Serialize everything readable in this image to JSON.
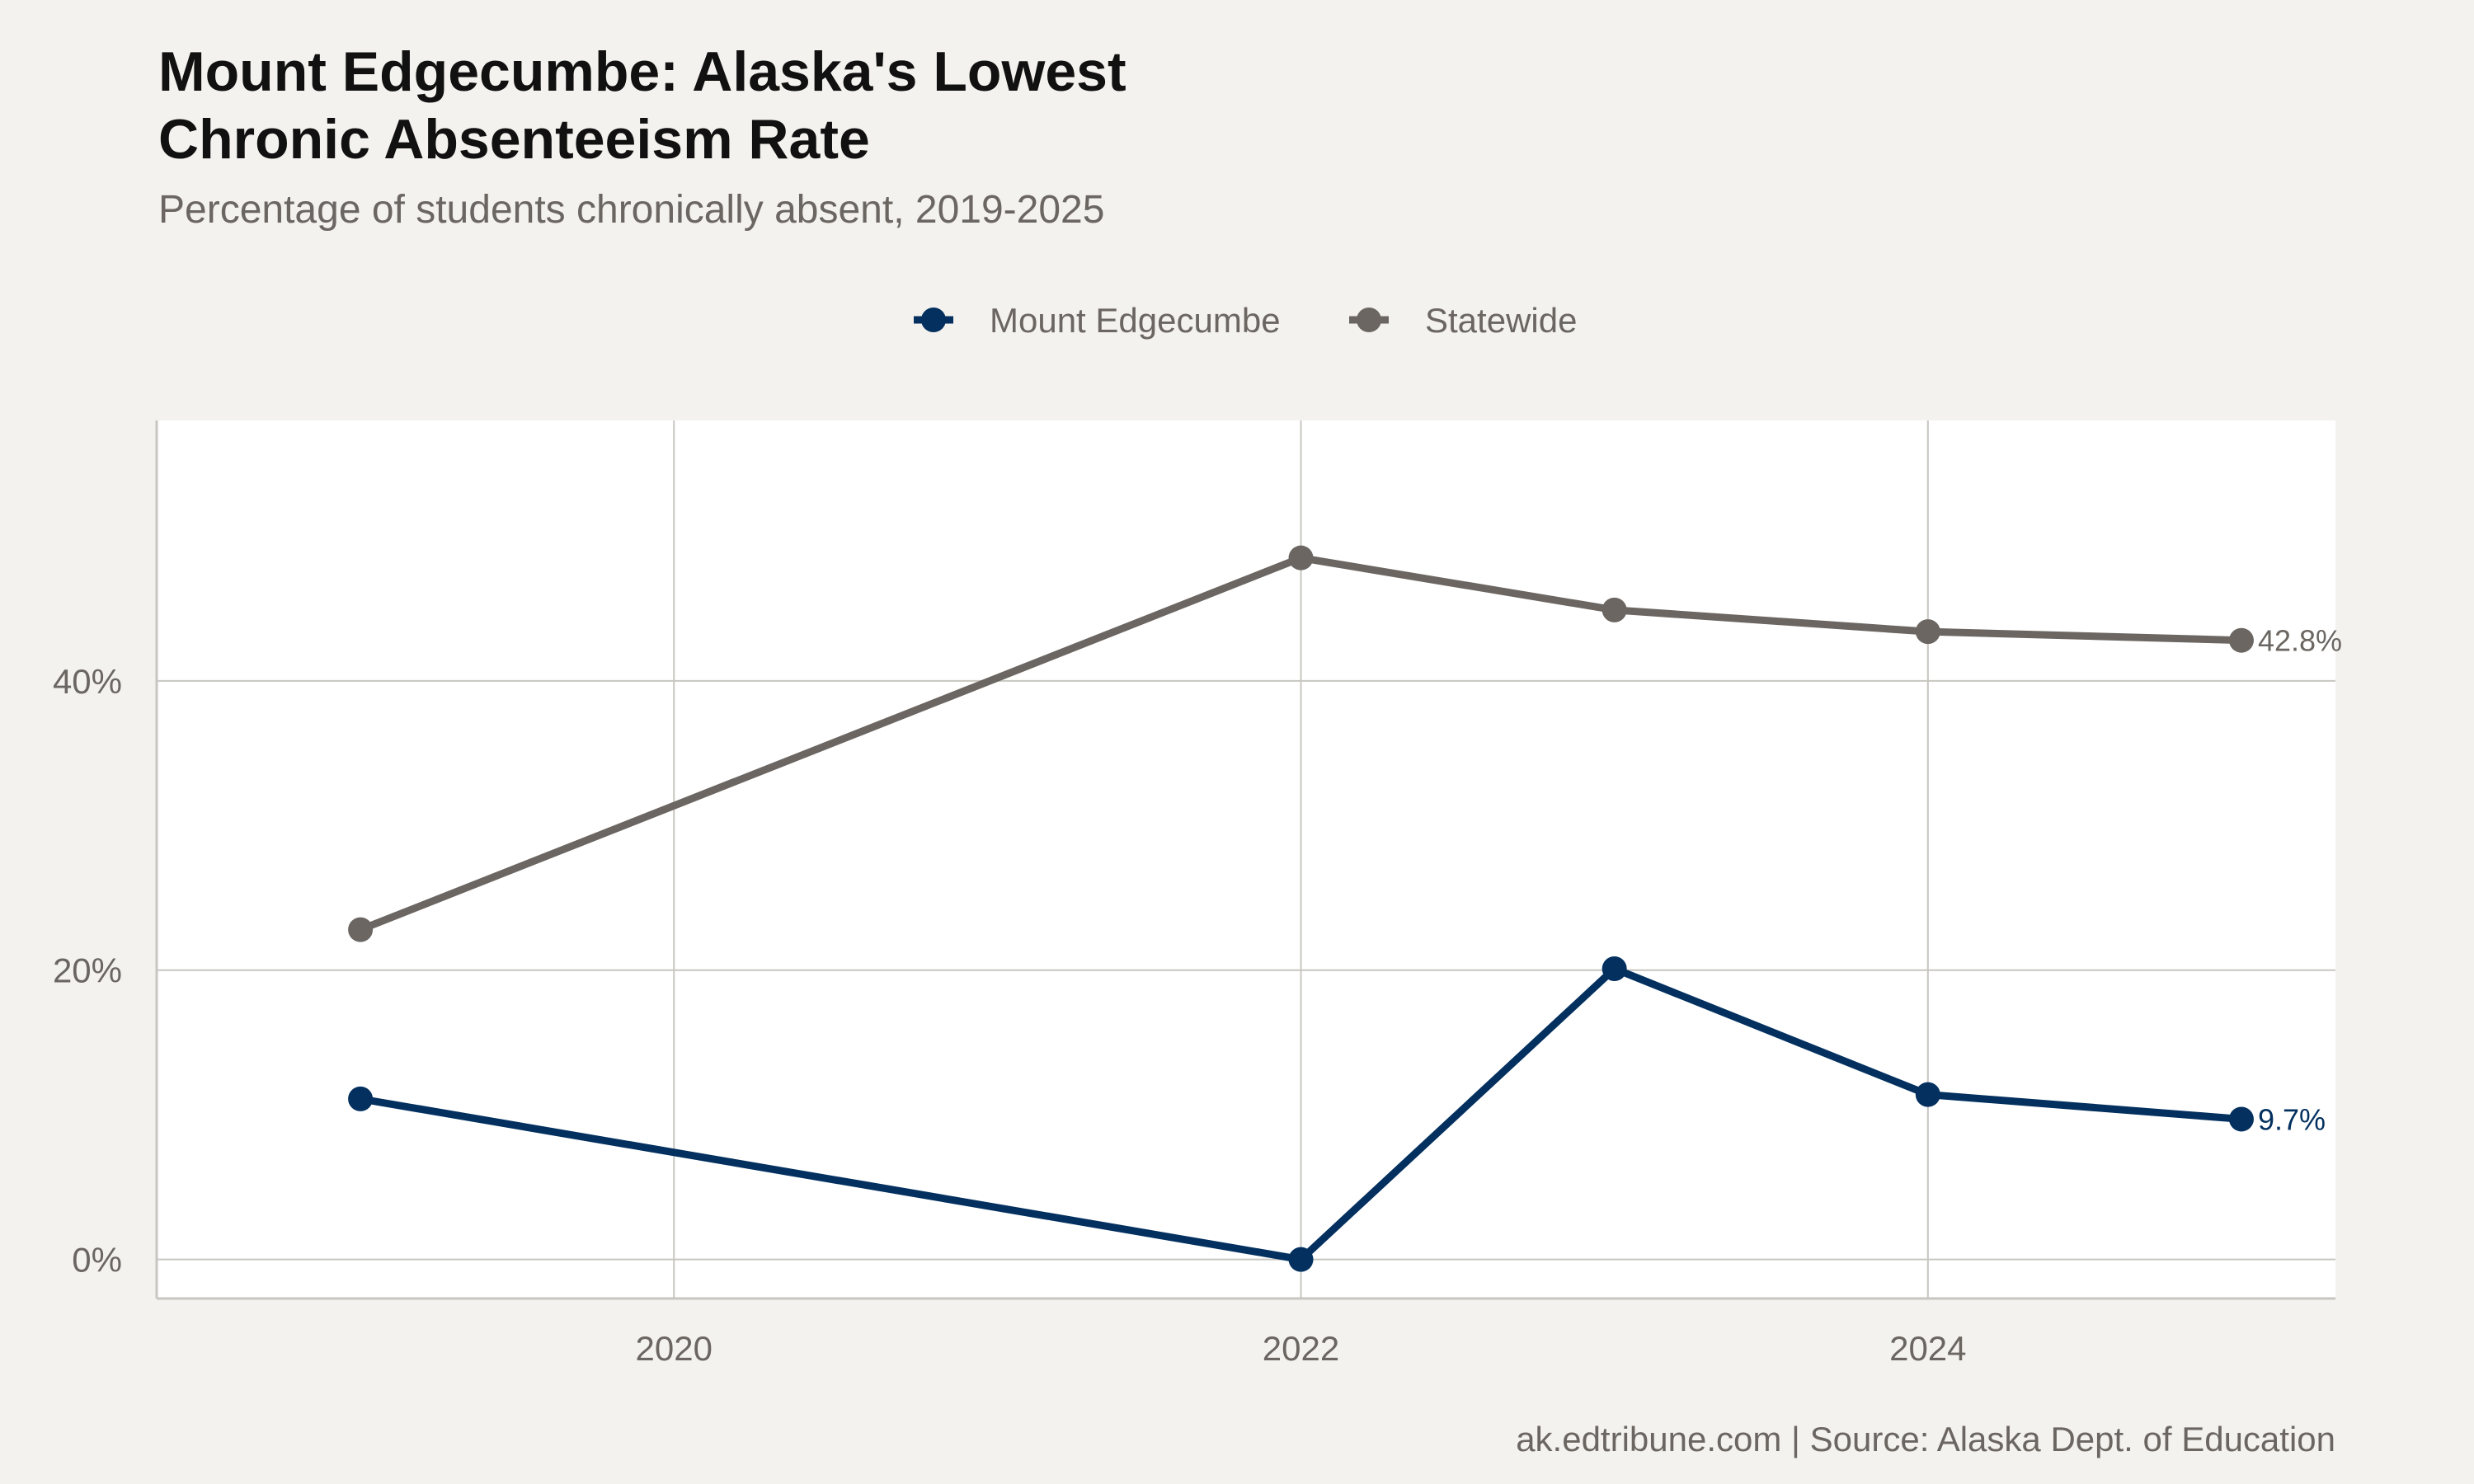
{
  "chart_data": {
    "type": "line",
    "title_lines": [
      "Mount Edgecumbe: Alaska's Lowest",
      "Chronic Absenteeism Rate"
    ],
    "subtitle": "Percentage of students chronically absent, 2019-2025",
    "caption": "ak.edtribune.com | Source: Alaska Dept. of Education",
    "legend_position": "top",
    "grid": true,
    "xlim": [
      2018.35,
      2025.3
    ],
    "ylim": [
      -2.7,
      58
    ],
    "x_ticks": [
      {
        "value": 2020,
        "label": "2020"
      },
      {
        "value": 2022,
        "label": "2022"
      },
      {
        "value": 2024,
        "label": "2024"
      }
    ],
    "y_ticks": [
      {
        "value": 0,
        "label": "0%"
      },
      {
        "value": 20,
        "label": "20%"
      },
      {
        "value": 40,
        "label": "40%"
      }
    ],
    "series": [
      {
        "name": "Mount Edgecumbe",
        "color": "#03305f",
        "end_label": "9.7%",
        "points": [
          {
            "x": 2019,
            "y": 11.1
          },
          {
            "x": 2022,
            "y": 0.0
          },
          {
            "x": 2023,
            "y": 20.1
          },
          {
            "x": 2024,
            "y": 11.4
          },
          {
            "x": 2025,
            "y": 9.7
          }
        ]
      },
      {
        "name": "Statewide",
        "color": "#6b6661",
        "end_label": "42.8%",
        "points": [
          {
            "x": 2019,
            "y": 22.8
          },
          {
            "x": 2022,
            "y": 48.5
          },
          {
            "x": 2023,
            "y": 44.9
          },
          {
            "x": 2024,
            "y": 43.4
          },
          {
            "x": 2025,
            "y": 42.8
          }
        ]
      }
    ]
  }
}
